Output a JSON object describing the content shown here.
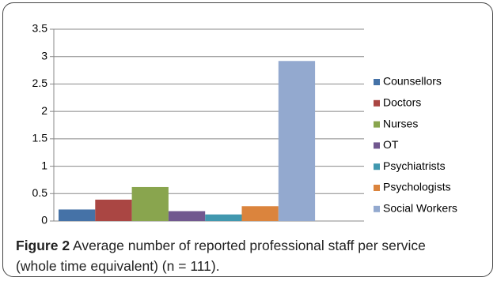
{
  "chart_data": {
    "type": "bar",
    "categories": [
      null
    ],
    "series": [
      {
        "name": "Counsellors",
        "color": "#4572a7",
        "values": [
          0.21
        ]
      },
      {
        "name": "Doctors",
        "color": "#aa4643",
        "values": [
          0.39
        ]
      },
      {
        "name": "Nurses",
        "color": "#89a54e",
        "values": [
          0.62
        ]
      },
      {
        "name": "OT",
        "color": "#71588f",
        "values": [
          0.18
        ]
      },
      {
        "name": "Psychiatrists",
        "color": "#4198af",
        "values": [
          0.12
        ]
      },
      {
        "name": "Psychologists",
        "color": "#db843d",
        "values": [
          0.27
        ]
      },
      {
        "name": "Social Workers",
        "color": "#93a9cf",
        "values": [
          2.92
        ]
      }
    ],
    "ylim": [
      0,
      3.5
    ],
    "yticks": [
      0,
      0.5,
      1,
      1.5,
      2,
      2.5,
      3,
      3.5
    ],
    "grid": true,
    "legend": "right",
    "caption_label": "Figure 2",
    "caption_text": "Average number of reported professional staff per service (whole time equivalent) (n = 111)."
  }
}
